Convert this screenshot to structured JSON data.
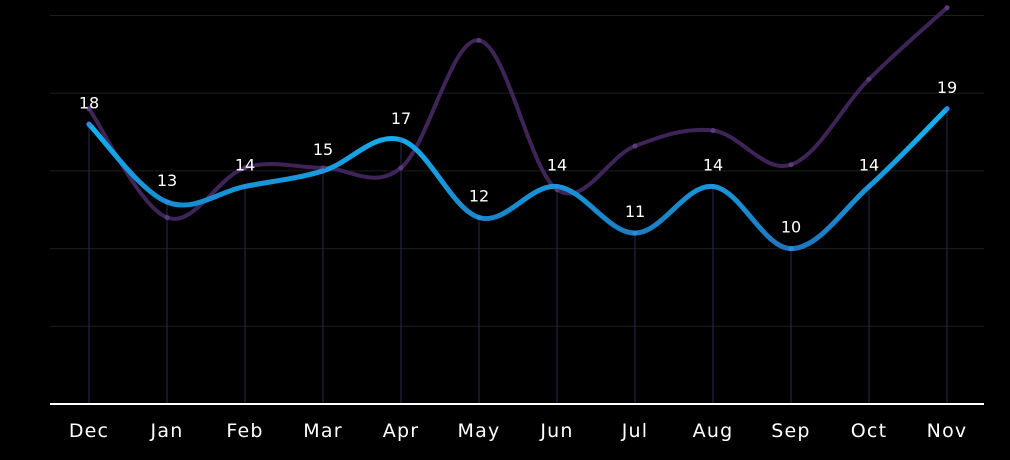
{
  "chart_data": {
    "type": "line",
    "categories": [
      "Dec",
      "Jan",
      "Feb",
      "Mar",
      "Apr",
      "May",
      "Jun",
      "Jul",
      "Aug",
      "Sep",
      "Oct",
      "Nov"
    ],
    "series": [
      {
        "values": [
          18,
          13,
          14,
          15,
          17,
          12,
          14,
          11,
          14,
          10,
          14,
          19
        ],
        "color": "#12b0f0",
        "color_secondary": "#1f6fb8",
        "data_labels": true
      },
      {
        "values": [
          19,
          12,
          15.2,
          15.2,
          15.2,
          23.4,
          13.8,
          16.6,
          17.6,
          15.4,
          20.9,
          25.5
        ],
        "color": "#3f2458",
        "data_labels": false
      }
    ],
    "ylim": [
      0,
      26
    ],
    "grid": true,
    "legend": "none",
    "title": "",
    "xlabel": "",
    "ylabel": ""
  }
}
